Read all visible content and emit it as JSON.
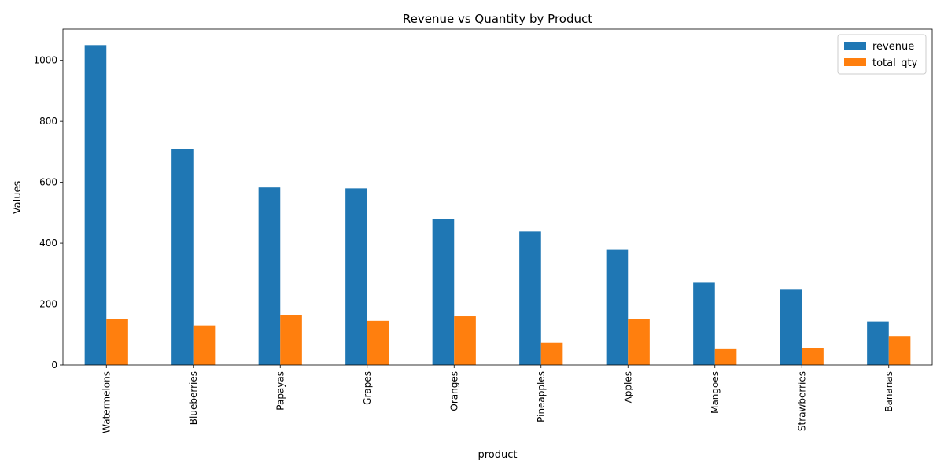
{
  "chart_data": {
    "type": "bar",
    "title": "Revenue vs Quantity by Product",
    "xlabel": "product",
    "ylabel": "Values",
    "categories": [
      "Watermelons",
      "Blueberries",
      "Papayas",
      "Grapes",
      "Oranges",
      "Pineapples",
      "Apples",
      "Mangoes",
      "Strawberries",
      "Bananas"
    ],
    "series": [
      {
        "name": "revenue",
        "color": "#1f77b4",
        "values": [
          1050,
          710,
          583,
          580,
          478,
          438,
          378,
          270,
          247,
          143
        ]
      },
      {
        "name": "total_qty",
        "color": "#ff7f0e",
        "values": [
          150,
          130,
          165,
          145,
          160,
          73,
          150,
          52,
          56,
          95
        ]
      }
    ],
    "ylim": [
      0,
      1102.5
    ],
    "yticks": [
      0,
      200,
      400,
      600,
      800,
      1000
    ],
    "grid": false,
    "legend_position": "top-right"
  }
}
